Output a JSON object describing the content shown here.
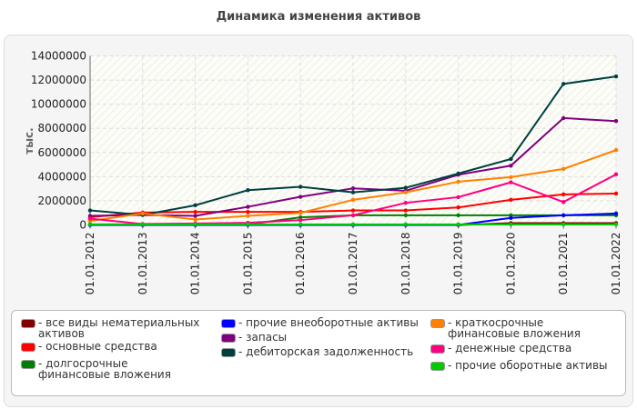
{
  "chart_data": {
    "type": "line",
    "title": "Динамика изменения активов",
    "ylabel": "тыс.",
    "xlabel": "",
    "ylim": [
      0,
      14000000
    ],
    "yticks": [
      "0",
      "2000000",
      "4000000",
      "6000000",
      "8000000",
      "10000000",
      "12000000",
      "14000000"
    ],
    "categories": [
      "01.01.2012",
      "01.01.2013",
      "01.01.2014",
      "01.01.2015",
      "01.01.2016",
      "01.01.2017",
      "01.01.2018",
      "01.01.2019",
      "01.01.2020",
      "01.01.2021",
      "01.01.2022"
    ],
    "grid": true,
    "legend": "bottom",
    "series": [
      {
        "name": "все виды нематериальных активов",
        "color": "#800000",
        "values": [
          0,
          0,
          0,
          0,
          0,
          0,
          0,
          0,
          150000,
          150000,
          150000
        ]
      },
      {
        "name": "основные средства",
        "color": "#ff0000",
        "values": [
          650000,
          1030000,
          1080000,
          1080000,
          1080000,
          1200000,
          1200000,
          1450000,
          2080000,
          2530000,
          2600000
        ]
      },
      {
        "name": "долгосрочные финансовые вложения",
        "color": "#008000",
        "values": [
          50000,
          50000,
          50000,
          50000,
          630000,
          800000,
          800000,
          800000,
          800000,
          800000,
          800000
        ]
      },
      {
        "name": "прочие внеоборотные активы",
        "color": "#0000ff",
        "values": [
          0,
          0,
          0,
          0,
          0,
          0,
          0,
          0,
          580000,
          800000,
          950000
        ]
      },
      {
        "name": "запасы",
        "color": "#800080",
        "values": [
          750000,
          830000,
          750000,
          1500000,
          2330000,
          3030000,
          2830000,
          4160000,
          4910000,
          8850000,
          8600000
        ]
      },
      {
        "name": "дебиторская задолженность",
        "color": "#004040",
        "values": [
          1200000,
          830000,
          1630000,
          2880000,
          3160000,
          2700000,
          3080000,
          4260000,
          5460000,
          11680000,
          12300000
        ]
      },
      {
        "name": "краткосрочные финансовые вложения",
        "color": "#ff8000",
        "values": [
          330000,
          950000,
          450000,
          750000,
          1000000,
          2080000,
          2700000,
          3580000,
          3960000,
          4640000,
          6200000
        ]
      },
      {
        "name": "денежные средства",
        "color": "#ff0080",
        "values": [
          530000,
          80000,
          120000,
          180000,
          400000,
          800000,
          1830000,
          2300000,
          3530000,
          1900000,
          4190000
        ]
      },
      {
        "name": "прочие оборотные активы",
        "color": "#00cc00",
        "values": [
          50000,
          50000,
          50000,
          50000,
          50000,
          50000,
          50000,
          50000,
          50000,
          50000,
          50000
        ]
      }
    ]
  }
}
